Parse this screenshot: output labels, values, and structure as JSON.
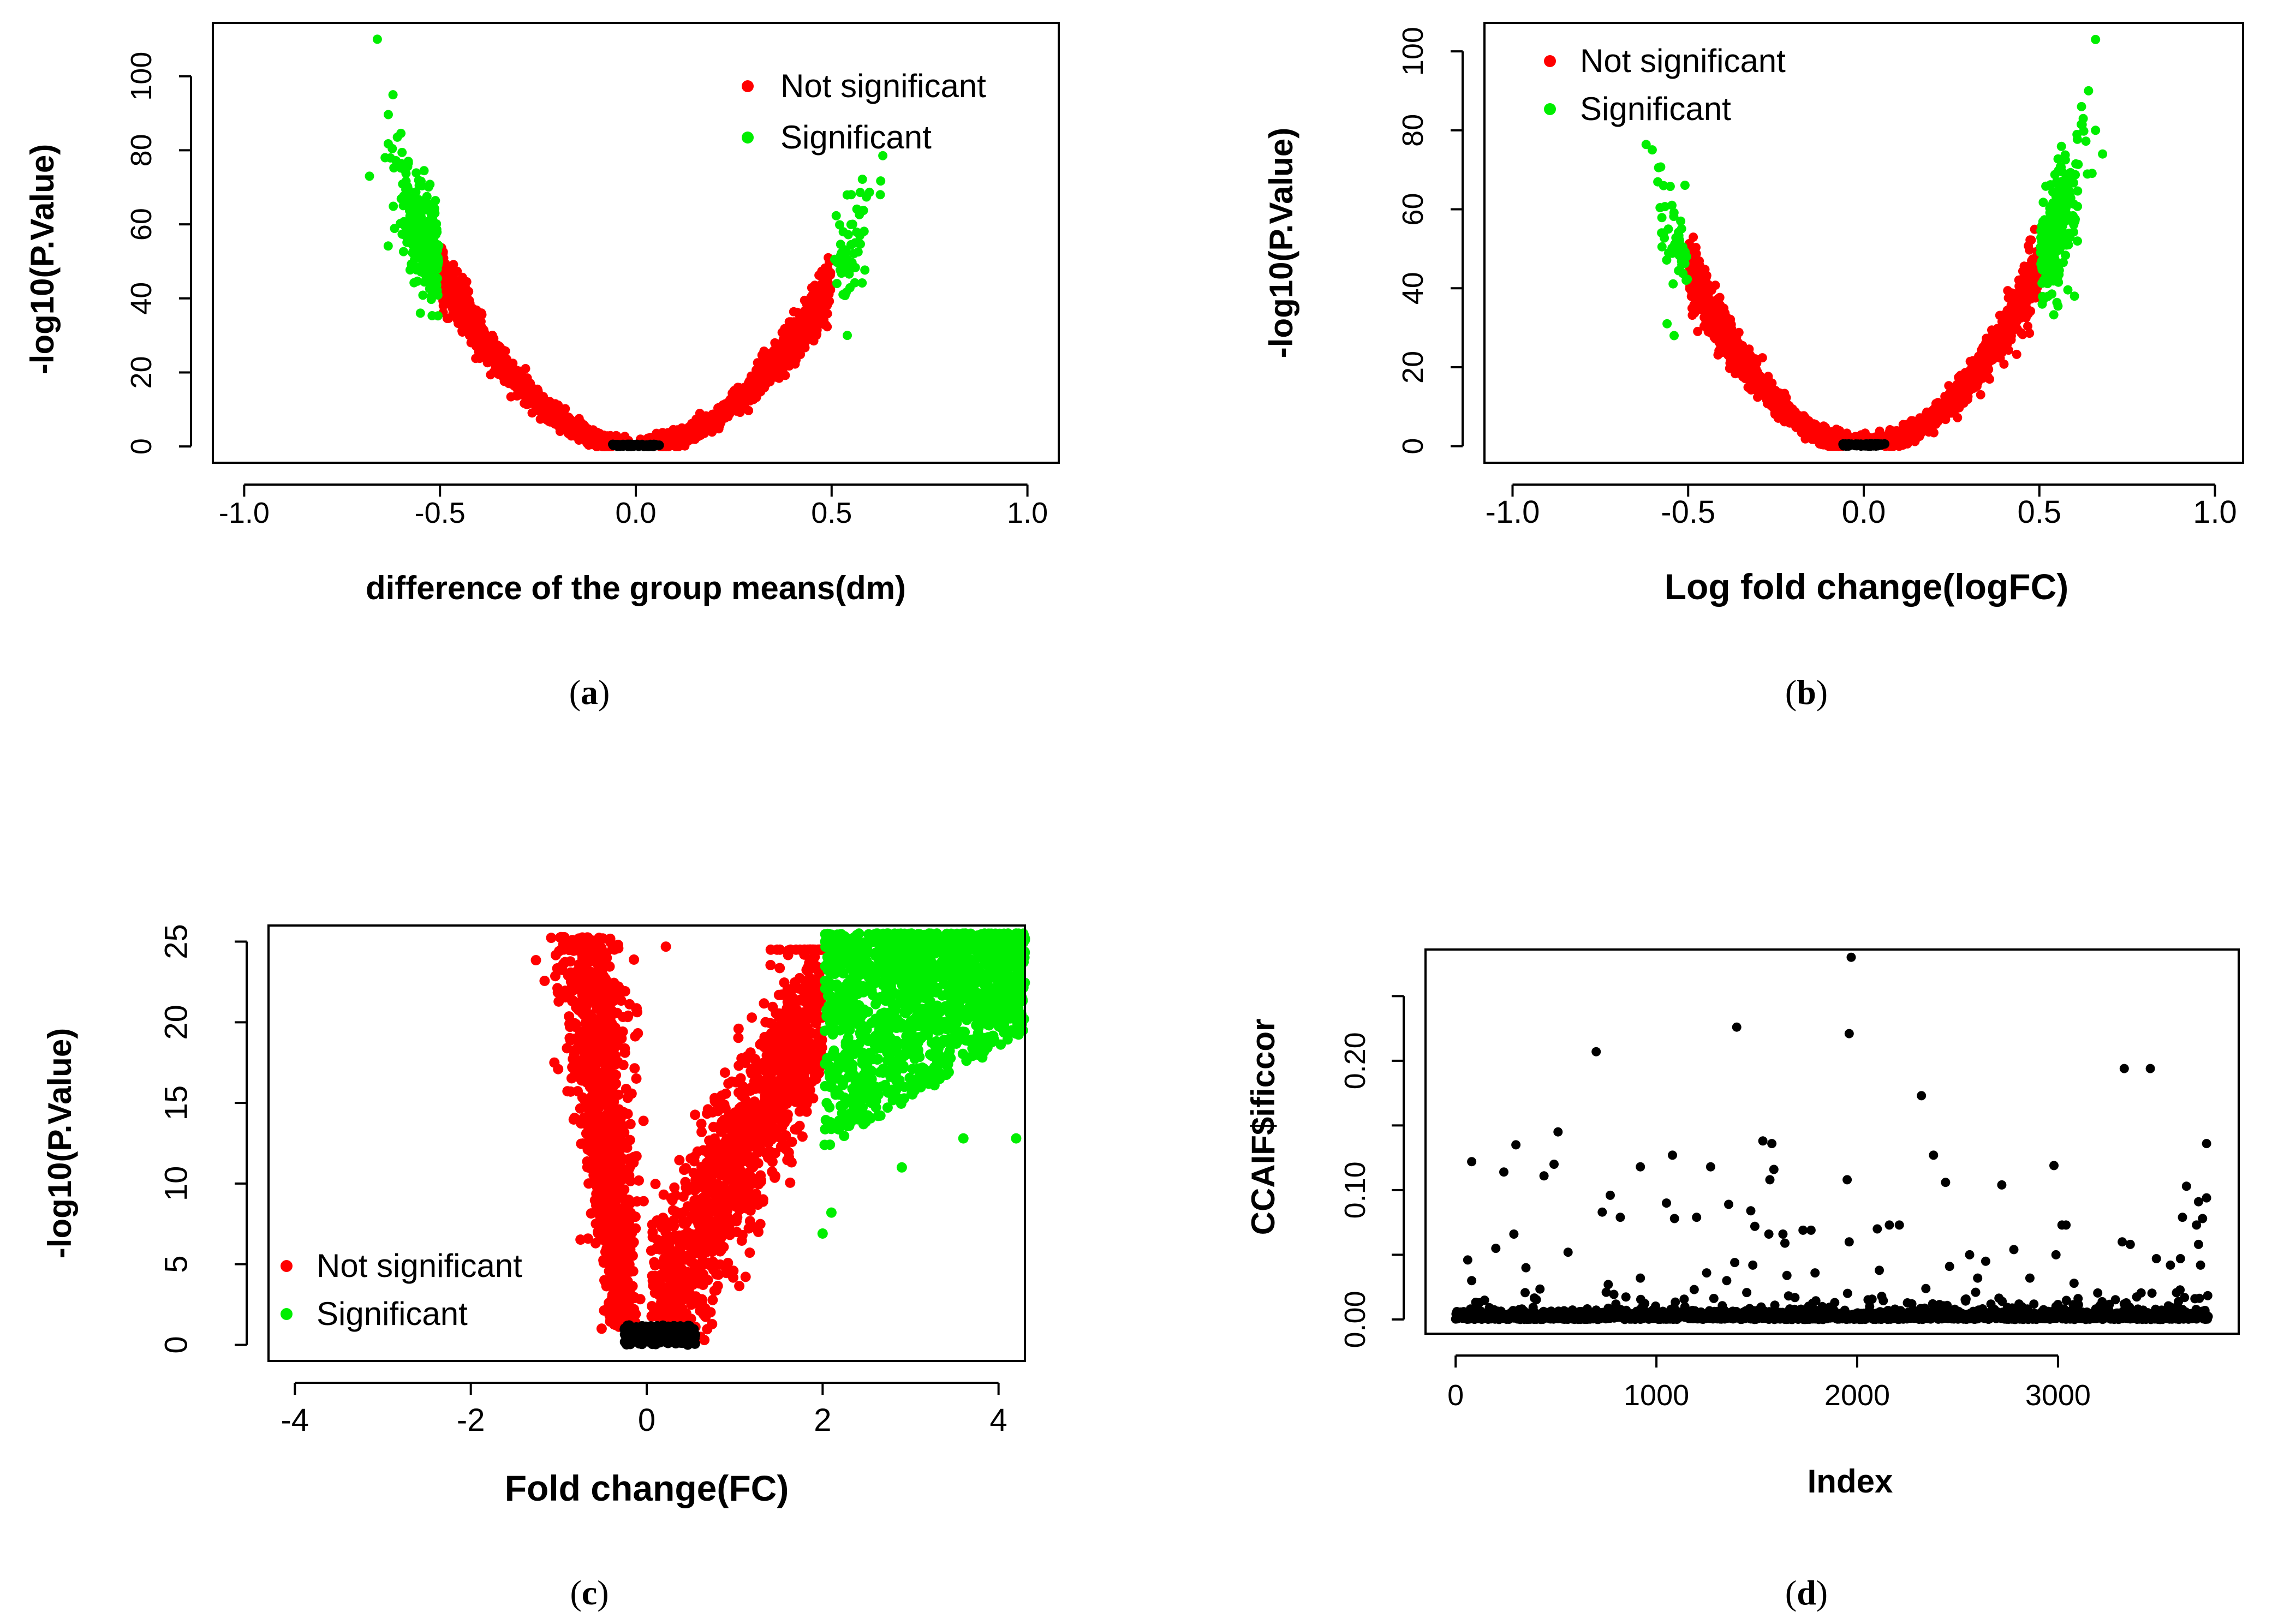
{
  "figure": {
    "panels": [
      {
        "label": "a",
        "caption_open": "(",
        "caption_close": ")"
      },
      {
        "label": "b",
        "caption_open": "(",
        "caption_close": ")"
      },
      {
        "label": "c",
        "caption_open": "(",
        "caption_close": ")"
      },
      {
        "label": "d",
        "caption_open": "(",
        "caption_close": ")"
      }
    ]
  },
  "colors": {
    "not_significant": "#ff0000",
    "significant": "#00ee00",
    "baseline": "#000000",
    "index_points": "#000000"
  },
  "chart_data": [
    {
      "id": "a",
      "type": "scatter",
      "kind": "volcano",
      "title": "",
      "xlabel": "difference of the group means(dm)",
      "ylabel": "-log10(P.Value)",
      "xlim": [
        -1.08,
        1.08
      ],
      "ylim": [
        -4.4,
        114.4
      ],
      "xticks": [
        -1.0,
        -0.5,
        0.0,
        0.5,
        1.0
      ],
      "xtick_labels": [
        "-1.0",
        "-0.5",
        "0.0",
        "0.5",
        "1.0"
      ],
      "yticks": [
        0,
        20,
        40,
        60,
        80,
        100
      ],
      "ytick_labels": [
        "0",
        "20",
        "40",
        "60",
        "80",
        "100"
      ],
      "legend": {
        "position": "top-right",
        "entries": [
          "Not significant",
          "Significant"
        ]
      },
      "shape": {
        "left_a": 190,
        "right_a": 178,
        "threshold": 0.5,
        "spread": 0.12
      },
      "series": [
        {
          "name": "Not significant",
          "color": "#ff0000",
          "approx_x_range": [
            -0.5,
            0.5
          ],
          "approx_y_max": 50
        },
        {
          "name": "Significant",
          "color": "#00ee00",
          "approx_x_range": [
            -0.68,
            0.56
          ],
          "sample_points": [
            [
              -0.66,
              110
            ],
            [
              -0.62,
              95
            ],
            [
              -0.68,
              73
            ],
            [
              -0.64,
              78
            ],
            [
              -0.58,
              60
            ],
            [
              -0.55,
              36
            ],
            [
              0.55,
              68
            ],
            [
              0.56,
              55
            ],
            [
              0.53,
              50
            ],
            [
              0.54,
              30
            ]
          ]
        },
        {
          "name": "baseline",
          "color": "#000000",
          "approx_x_range": [
            -0.06,
            0.06
          ],
          "approx_y_max": 0.5
        }
      ]
    },
    {
      "id": "b",
      "type": "scatter",
      "kind": "volcano",
      "title": "",
      "xlabel": "Log fold change(logFC)",
      "ylabel": "-log10(P.Value)",
      "xlim": [
        -1.08,
        1.08
      ],
      "ylim": [
        -4.2,
        107.2
      ],
      "xticks": [
        -1.0,
        -0.5,
        0.0,
        0.5,
        1.0
      ],
      "xtick_labels": [
        "-1.0",
        "-0.5",
        "0.0",
        "0.5",
        "1.0"
      ],
      "yticks": [
        0,
        20,
        40,
        60,
        80,
        100
      ],
      "ytick_labels": [
        "0",
        "20",
        "40",
        "60",
        "80",
        "100"
      ],
      "legend": {
        "position": "top-left",
        "entries": [
          "Not significant",
          "Significant"
        ]
      },
      "shape": {
        "left_a": 182,
        "right_a": 182,
        "threshold": 0.5,
        "spread": 0.12
      },
      "series": [
        {
          "name": "Not significant",
          "color": "#ff0000",
          "approx_x_range": [
            -0.5,
            0.5
          ],
          "approx_y_max": 49
        },
        {
          "name": "Significant",
          "color": "#00ee00",
          "approx_x_range": [
            -0.58,
            0.67
          ],
          "sample_points": [
            [
              0.66,
              103
            ],
            [
              0.64,
              90
            ],
            [
              0.62,
              86
            ],
            [
              0.66,
              80
            ],
            [
              0.68,
              74
            ],
            [
              -0.57,
              66
            ],
            [
              -0.57,
              54
            ],
            [
              -0.56,
              31
            ],
            [
              -0.54,
              28
            ],
            [
              0.6,
              38
            ]
          ]
        },
        {
          "name": "baseline",
          "color": "#000000",
          "approx_x_range": [
            -0.06,
            0.06
          ],
          "approx_y_max": 0.5
        }
      ]
    },
    {
      "id": "c",
      "type": "scatter",
      "kind": "volcano",
      "title": "",
      "xlabel": "Fold change(FC)",
      "ylabel": "-log10(P.Value)",
      "xlim": [
        -4.3,
        4.3
      ],
      "ylim": [
        -1.0,
        26.0
      ],
      "xticks": [
        -4,
        -2,
        0,
        2,
        4
      ],
      "xtick_labels": [
        "-4",
        "-2",
        "0",
        "2",
        "4"
      ],
      "yticks": [
        0,
        5,
        10,
        15,
        20,
        25
      ],
      "ytick_labels": [
        "0",
        "5",
        "10",
        "15",
        "20",
        "25"
      ],
      "legend": {
        "position": "bottom-left",
        "entries": [
          "Not significant",
          "Significant"
        ]
      },
      "shape": {
        "threshold": 2.0,
        "ymax": 25.5
      },
      "series": [
        {
          "name": "Not significant",
          "color": "#ff0000",
          "approx_x_range": [
            -1.4,
            2.0
          ],
          "approx_y_max": 25.3
        },
        {
          "name": "Significant",
          "color": "#00ee00",
          "approx_x_range": [
            2.0,
            4.3
          ],
          "approx_y_max": 25.5,
          "sample_points": [
            [
              2.1,
              8.2
            ],
            [
              2.0,
              6.9
            ],
            [
              3.6,
              12.8
            ],
            [
              4.2,
              12.8
            ],
            [
              2.9,
              11.0
            ]
          ]
        },
        {
          "name": "baseline",
          "color": "#000000",
          "approx_x_range": [
            -0.3,
            0.7
          ],
          "approx_y_max": 1.3
        }
      ]
    },
    {
      "id": "d",
      "type": "scatter",
      "kind": "index",
      "title": "",
      "xlabel": "Index",
      "ylabel": "CCAIF$ificcor",
      "xlim": [
        -150,
        3900
      ],
      "ylim": [
        -0.011,
        0.286
      ],
      "xticks": [
        0,
        1000,
        2000,
        3000
      ],
      "xtick_labels": [
        "0",
        "1000",
        "2000",
        "3000"
      ],
      "yticks": [
        0.0,
        0.05,
        0.1,
        0.15,
        0.2,
        0.25
      ],
      "ytick_labels": [
        "0.00",
        "",
        "0.10",
        "",
        "0.20",
        ""
      ],
      "n_points": 3750,
      "series": [
        {
          "name": "ificcor",
          "color": "#000000",
          "outliers": [
            [
              1970,
              0.28
            ],
            [
              1400,
              0.226
            ],
            [
              1960,
              0.221
            ],
            [
              700,
              0.207
            ],
            [
              3330,
              0.194
            ],
            [
              3460,
              0.194
            ],
            [
              2320,
              0.173
            ],
            [
              510,
              0.145
            ],
            [
              1530,
              0.138
            ],
            [
              1575,
              0.136
            ],
            [
              300,
              0.135
            ],
            [
              3740,
              0.136
            ],
            [
              2380,
              0.127
            ],
            [
              1080,
              0.127
            ],
            [
              80,
              0.122
            ],
            [
              490,
              0.12
            ],
            [
              2980,
              0.119
            ],
            [
              920,
              0.118
            ],
            [
              1270,
              0.118
            ],
            [
              240,
              0.114
            ],
            [
              1585,
              0.116
            ],
            [
              440,
              0.111
            ],
            [
              1565,
              0.108
            ],
            [
              2440,
              0.106
            ],
            [
              2720,
              0.104
            ],
            [
              1950,
              0.108
            ],
            [
              3640,
              0.103
            ],
            [
              770,
              0.096
            ],
            [
              3740,
              0.094
            ],
            [
              3700,
              0.091
            ],
            [
              1360,
              0.089
            ],
            [
              1050,
              0.09
            ],
            [
              730,
              0.083
            ],
            [
              1470,
              0.084
            ],
            [
              820,
              0.079
            ],
            [
              1090,
              0.078
            ],
            [
              1200,
              0.079
            ],
            [
              3620,
              0.079
            ],
            [
              3720,
              0.078
            ],
            [
              3020,
              0.073
            ],
            [
              3040,
              0.073
            ],
            [
              2210,
              0.073
            ],
            [
              2160,
              0.073
            ],
            [
              3690,
              0.073
            ],
            [
              1730,
              0.069
            ],
            [
              1770,
              0.069
            ],
            [
              1630,
              0.066
            ],
            [
              1560,
              0.066
            ],
            [
              2100,
              0.07
            ],
            [
              1490,
              0.072
            ],
            [
              290,
              0.066
            ],
            [
              1640,
              0.059
            ],
            [
              1960,
              0.06
            ],
            [
              3320,
              0.06
            ],
            [
              3360,
              0.058
            ],
            [
              3700,
              0.058
            ],
            [
              560,
              0.052
            ],
            [
              200,
              0.055
            ],
            [
              2780,
              0.054
            ],
            [
              2990,
              0.05
            ],
            [
              3490,
              0.047
            ],
            [
              3610,
              0.047
            ],
            [
              2640,
              0.045
            ],
            [
              2560,
              0.05
            ],
            [
              1390,
              0.044
            ],
            [
              60,
              0.046
            ],
            [
              350,
              0.04
            ],
            [
              1480,
              0.042
            ],
            [
              3710,
              0.042
            ],
            [
              3560,
              0.042
            ],
            [
              2460,
              0.041
            ],
            [
              2110,
              0.038
            ],
            [
              1250,
              0.036
            ],
            [
              1790,
              0.036
            ],
            [
              1650,
              0.034
            ],
            [
              2600,
              0.032
            ],
            [
              2860,
              0.032
            ],
            [
              920,
              0.032
            ],
            [
              1350,
              0.03
            ],
            [
              80,
              0.03
            ],
            [
              3080,
              0.028
            ],
            [
              760,
              0.027
            ]
          ]
        }
      ]
    }
  ]
}
